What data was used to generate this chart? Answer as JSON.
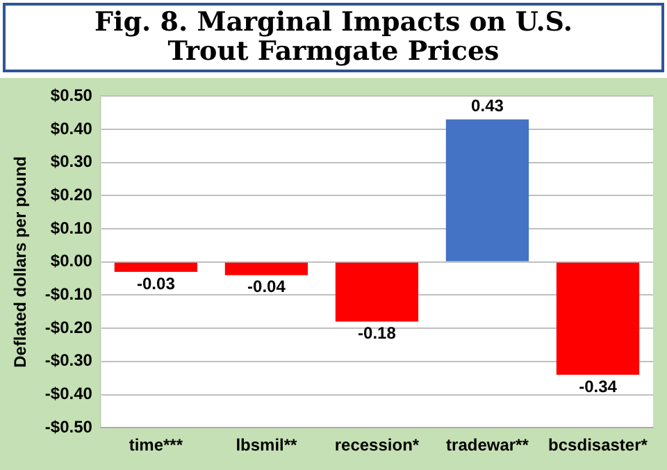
{
  "chart_data": {
    "type": "bar",
    "title": "Fig. 8. Marginal Impacts on U.S. Trout Farmgate Prices",
    "ylabel": "Deflated dollars per pound",
    "categories": [
      "time***",
      "lbsmil**",
      "recession*",
      "tradewar**",
      "bcsdisaster*"
    ],
    "values": [
      -0.03,
      -0.04,
      -0.18,
      0.43,
      -0.34
    ],
    "colors": [
      "#ff0000",
      "#ff0000",
      "#ff0000",
      "#4472c4",
      "#ff0000"
    ],
    "ylim": [
      -0.5,
      0.5
    ],
    "yticks": [
      {
        "value": -0.5,
        "label": "-$0.50"
      },
      {
        "value": -0.4,
        "label": "-$0.40"
      },
      {
        "value": -0.3,
        "label": "-$0.30"
      },
      {
        "value": -0.2,
        "label": "-$0.20"
      },
      {
        "value": -0.1,
        "label": "-$0.10"
      },
      {
        "value": 0,
        "label": "$0.00"
      },
      {
        "value": 0.1,
        "label": "$0.10"
      },
      {
        "value": 0.2,
        "label": "$0.20"
      },
      {
        "value": 0.3,
        "label": "$0.30"
      },
      {
        "value": 0.4,
        "label": "$0.40"
      },
      {
        "value": 0.5,
        "label": "$0.50"
      }
    ],
    "grid": "y",
    "data_labels": true
  }
}
